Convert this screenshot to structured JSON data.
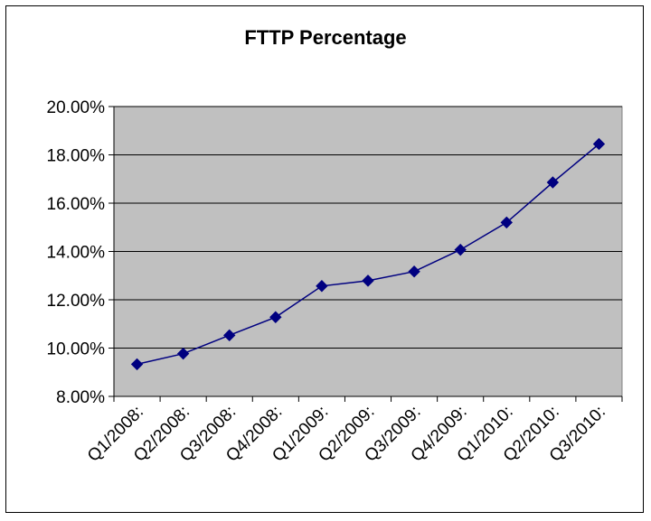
{
  "chart_data": {
    "type": "line",
    "title": "FTTP Percentage",
    "xlabel": "",
    "ylabel": "",
    "categories": [
      "Q1/2008:",
      "Q2/2008:",
      "Q3/2008:",
      "Q4/2008:",
      "Q1/2009:",
      "Q2/2009:",
      "Q3/2009:",
      "Q4/2009:",
      "Q1/2010:",
      "Q2/2010:",
      "Q3/2010:"
    ],
    "series": [
      {
        "values": [
          9.33,
          9.77,
          10.53,
          11.28,
          12.57,
          12.79,
          13.17,
          14.07,
          15.2,
          16.86,
          18.45
        ]
      }
    ],
    "ylim": [
      8,
      20
    ],
    "y_ticks": [
      "8.00%",
      "10.00%",
      "12.00%",
      "14.00%",
      "16.00%",
      "18.00%",
      "20.00%"
    ],
    "y_tick_values": [
      8,
      10,
      12,
      14,
      16,
      18,
      20
    ],
    "grid": true,
    "legend": "none",
    "colors": {
      "plot_background": "#c0c0c0",
      "line": "#000080",
      "marker": "#000080",
      "gridline": "#000000"
    }
  }
}
